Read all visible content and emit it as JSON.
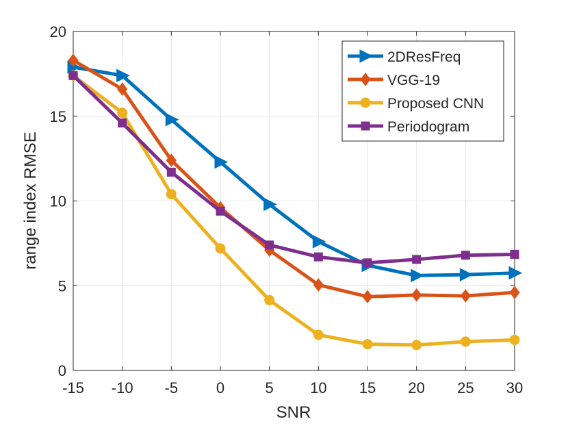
{
  "chart_data": {
    "type": "line",
    "title": "",
    "xlabel": "SNR",
    "ylabel": "range index RMSE",
    "x": [
      -15,
      -10,
      -5,
      0,
      5,
      10,
      15,
      20,
      25,
      30
    ],
    "xlim": [
      -15,
      30
    ],
    "ylim": [
      0,
      20
    ],
    "xticks": [
      "-15",
      "-10",
      "-5",
      "0",
      "5",
      "10",
      "15",
      "20",
      "25",
      "30"
    ],
    "xtick_values": [
      -15,
      -10,
      -5,
      0,
      5,
      10,
      15,
      20,
      25,
      30
    ],
    "yticks": [
      "0",
      "5",
      "10",
      "15",
      "20"
    ],
    "ytick_values": [
      0,
      5,
      10,
      15,
      20
    ],
    "grid": true,
    "legend_position": "top-right",
    "series": [
      {
        "name": "2DResFreq",
        "color": "#0072BD",
        "marker": "triangle-right",
        "values": [
          17.9,
          17.4,
          14.8,
          12.3,
          9.8,
          7.6,
          6.2,
          5.6,
          5.65,
          5.75
        ]
      },
      {
        "name": "VGG-19",
        "color": "#D95319",
        "marker": "diamond",
        "values": [
          18.3,
          16.6,
          12.4,
          9.6,
          7.1,
          5.05,
          4.35,
          4.45,
          4.4,
          4.6
        ]
      },
      {
        "name": "Proposed CNN",
        "color": "#EDB120",
        "marker": "circle",
        "values": [
          17.4,
          15.2,
          10.4,
          7.2,
          4.15,
          2.1,
          1.55,
          1.5,
          1.7,
          1.8
        ]
      },
      {
        "name": "Periodogram",
        "color": "#7E2F8E",
        "marker": "square",
        "values": [
          17.4,
          14.6,
          11.7,
          9.4,
          7.4,
          6.7,
          6.35,
          6.55,
          6.8,
          6.85
        ]
      }
    ]
  }
}
